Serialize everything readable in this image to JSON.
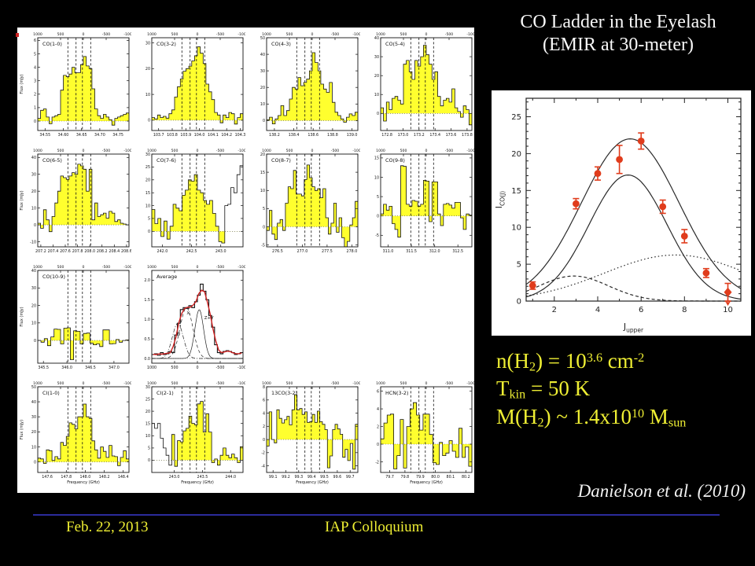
{
  "slide": {
    "title": {
      "line1": "CO Ladder in the Eyelash",
      "line2": "(EMIR at 30-meter)",
      "color": "#f8f8f8"
    },
    "credit": "Danielson et al. (2010)",
    "credit_color": "#f2f2f2",
    "footer": {
      "date": "Feb. 22, 2013",
      "venue": "IAP Colloquium",
      "divider_color": "#2b2b9b",
      "text_color": "#eeee33"
    },
    "artifact_color": "#cc2222"
  },
  "physics": {
    "color": "#eeee33",
    "lines": [
      [
        {
          "t": "n(H"
        },
        {
          "t": "2",
          "s": "sub"
        },
        {
          "t": ") = 10"
        },
        {
          "t": "3.6",
          "s": "sup"
        },
        {
          "t": " cm"
        },
        {
          "t": "-2",
          "s": "sup"
        }
      ],
      [
        {
          "t": "T"
        },
        {
          "t": "kin",
          "s": "sub"
        },
        {
          "t": " = 50 K"
        }
      ],
      [
        {
          "t": "M(H"
        },
        {
          "t": "2",
          "s": "sub"
        },
        {
          "t": ") ~ 1.4x10"
        },
        {
          "t": "10",
          "s": "sup"
        },
        {
          "t": " M"
        },
        {
          "t": "sun",
          "s": "sub"
        }
      ]
    ]
  },
  "chart_data": [
    {
      "id": "co-ladder",
      "type": "scatter",
      "xlabel": "J",
      "xlabel_sub": "upper",
      "ylabel": "I",
      "ylabel_sub": "CO(J)",
      "xlim": [
        0.7,
        10.6
      ],
      "ylim": [
        0,
        27.5
      ],
      "xticks": [
        2,
        4,
        6,
        8,
        10
      ],
      "yticks": [
        0,
        5,
        10,
        15,
        20,
        25
      ],
      "points": {
        "x": [
          1,
          3,
          4,
          5,
          6,
          7,
          8,
          9,
          10
        ],
        "y": [
          2.1,
          13.2,
          17.3,
          19.2,
          21.7,
          12.8,
          8.8,
          3.8,
          1.2
        ],
        "yerr": [
          0.5,
          0.7,
          0.9,
          1.9,
          1.1,
          0.9,
          0.9,
          0.6,
          1.2
        ],
        "color": "#e03c1c",
        "upper_limit_index": 8
      },
      "curves": [
        {
          "style": "solid",
          "amp": 22.0,
          "center": 5.5,
          "sigma": 2.25
        },
        {
          "style": "solid",
          "amp": 17.1,
          "center": 5.4,
          "sigma": 1.8
        },
        {
          "style": "dashed",
          "amp": 3.4,
          "center": 2.9,
          "sigma": 1.6
        },
        {
          "style": "dotted",
          "amp": 6.25,
          "center": 7.6,
          "sigma": 3.3
        }
      ]
    },
    {
      "id": "spectra-grid",
      "type": "bar-grid",
      "flux_label": "Flux (mJy)",
      "freq_label": "Frequency (GHz)",
      "velocity_ticks": [
        "1000",
        "500",
        "0",
        "-500",
        "-1000"
      ],
      "dashed_velocities": [
        340,
        160,
        20,
        -160
      ],
      "bar_color": "#ffff2e",
      "red_fit_color": "#cc2020",
      "panels": [
        {
          "label": "CO(1-0)",
          "row": 0,
          "col": 0,
          "ylabel": true,
          "xmin": 34.53,
          "xmax": 34.78,
          "xticks": [
            "34.55",
            "34.60",
            "34.65",
            "34.70",
            "34.75"
          ],
          "ymin": -0.7,
          "ymax": 6.2,
          "yticks": [
            "0",
            "1",
            "2",
            "3",
            "4",
            "5",
            "6"
          ],
          "bins": [
            0.2,
            0.8,
            0.9,
            0.3,
            -0.2,
            0.3,
            0.4,
            0.5,
            2.3,
            3.4,
            3.3,
            3.5,
            4.0,
            3.6,
            3.6,
            4.2,
            4.8,
            4.1,
            3.9,
            2.4,
            0.9,
            0.4,
            0.2,
            0.5,
            0.3,
            0.1,
            -0.3,
            0.2,
            0.3,
            0.4,
            0.5,
            0.6
          ]
        },
        {
          "label": "CO(3-2)",
          "row": 0,
          "col": 1,
          "xmin": 103.65,
          "xmax": 104.32,
          "xticks": [
            "103.7",
            "103.8",
            "103.9",
            "104.0",
            "104.1",
            "104.2",
            "104.3"
          ],
          "ymin": -4,
          "ymax": 32,
          "yticks": [
            "0",
            "10",
            "20",
            "30"
          ],
          "bins": [
            1.0,
            0.5,
            2.0,
            1.0,
            1.5,
            0.8,
            2.5,
            4.0,
            9.0,
            13.0,
            16.0,
            19.0,
            20.0,
            21.0,
            23.0,
            25.0,
            28.5,
            26.0,
            22.0,
            14.0,
            11.0,
            8.0,
            3.0,
            2.0,
            -1.0,
            2.0,
            1.0,
            3.0,
            2.5,
            -1.5,
            1.0,
            2.5
          ]
        },
        {
          "label": "CO(4-3)",
          "row": 0,
          "col": 2,
          "xmin": 138.12,
          "xmax": 139.06,
          "xticks": [
            "138.2",
            "138.4",
            "138.6",
            "138.8",
            "139.0"
          ],
          "ymin": -6,
          "ymax": 50,
          "yticks": [
            "0",
            "10",
            "20",
            "30",
            "40",
            "50"
          ],
          "bins": [
            0.5,
            2.0,
            -2.0,
            1.0,
            3.0,
            9.0,
            3.0,
            6.0,
            13.0,
            20.0,
            19.0,
            26.0,
            21.0,
            23.0,
            25.0,
            30.0,
            41.0,
            35.0,
            30.0,
            22.0,
            19.0,
            17.0,
            23.0,
            11.0,
            5.0,
            3.0,
            1.0,
            -1.0,
            2.0,
            4.0,
            3.0,
            5.0
          ]
        },
        {
          "label": "CO(5-4)",
          "row": 0,
          "col": 3,
          "xmin": 172.72,
          "xmax": 173.86,
          "xticks": [
            "172.8",
            "173.0",
            "173.2",
            "173.4",
            "173.6",
            "173.8"
          ],
          "ymin": -9,
          "ymax": 40,
          "yticks": [
            "0",
            "10",
            "20",
            "30",
            "40"
          ],
          "bins": [
            3.0,
            -4.0,
            6.0,
            2.0,
            8.0,
            9.0,
            7.0,
            5.0,
            26.0,
            28.0,
            22.0,
            18.0,
            28.0,
            25.0,
            30.0,
            36.0,
            31.0,
            26.0,
            18.0,
            22.0,
            9.0,
            4.0,
            7.0,
            8.0,
            6.0,
            13.0,
            3.0,
            1.0,
            -2.0,
            4.0,
            2.0,
            -6.0
          ]
        },
        {
          "label": "CO(6-5)",
          "row": 1,
          "col": 0,
          "ylabel": true,
          "xmin": 207.15,
          "xmax": 208.64,
          "xticks": [
            "207.2",
            "207.4",
            "207.6",
            "207.8",
            "208.0",
            "208.2",
            "208.4",
            "208.6"
          ],
          "ymin": -13,
          "ymax": 42,
          "yticks": [
            "-10",
            "0",
            "10",
            "20",
            "30",
            "40"
          ],
          "bins": [
            1.0,
            -2.0,
            9.0,
            3.0,
            -4.0,
            5.0,
            13.0,
            20.0,
            29.0,
            28.0,
            27.0,
            29.0,
            31.0,
            30.0,
            36.0,
            35.0,
            33.0,
            20.0,
            33.0,
            3.0,
            13.0,
            5.0,
            6.0,
            7.0,
            4.0,
            8.0,
            7.0,
            2.0,
            3.0,
            1.0,
            0.5,
            0.0
          ]
        },
        {
          "label": "CO(7-6)",
          "row": 1,
          "col": 1,
          "xmin": 241.82,
          "xmax": 243.38,
          "xticks": [
            "242.0",
            "242.5",
            "243.0"
          ],
          "ymin": -6,
          "ymax": 30,
          "yticks": [
            "0",
            "5",
            "10",
            "15",
            "20",
            "25",
            "30"
          ],
          "open": [
            24,
            30
          ],
          "bins": [
            8.5,
            3.0,
            5.0,
            -2.0,
            4.0,
            -3.0,
            2.0,
            10.5,
            9.0,
            8.0,
            14.0,
            16.0,
            20.0,
            19.5,
            22.0,
            16.0,
            15.0,
            12.0,
            10.5,
            12.0,
            7.0,
            2.0,
            -4.0,
            -4.5,
            10.0,
            10.5,
            17.0,
            15.0,
            22.0,
            25.5
          ]
        },
        {
          "label": "CO(8-7)",
          "row": 1,
          "col": 2,
          "xmin": 276.28,
          "xmax": 278.12,
          "xticks": [
            "276.5",
            "277.0",
            "277.5",
            "278.0"
          ],
          "ymin": -5.5,
          "ymax": 20,
          "yticks": [
            "-5",
            "0",
            "5",
            "10",
            "15",
            "20"
          ],
          "bins": [
            -1.0,
            4.5,
            -2.0,
            -3.5,
            1.0,
            2.0,
            -1.0,
            6.5,
            11.0,
            10.5,
            15.5,
            9.0,
            9.0,
            8.5,
            13.0,
            17.0,
            13.5,
            11.0,
            10.0,
            10.5,
            8.0,
            10.5,
            2.5,
            -2.0,
            1.0,
            6.5,
            -1.5,
            2.5,
            -3.0,
            -5.5,
            -4.0,
            0.5,
            2.5,
            7.0
          ]
        },
        {
          "label": "CO(9-8)",
          "row": 1,
          "col": 3,
          "xmin": 310.84,
          "xmax": 312.8,
          "xticks": [
            "311.0",
            "311.5",
            "312.0",
            "312.5"
          ],
          "ymin": -8,
          "ymax": 16,
          "yticks": [
            "-5",
            "0",
            "5",
            "10",
            "15"
          ],
          "bins": [
            0.5,
            3.0,
            1.5,
            2.5,
            -2.0,
            -3.5,
            -5.5,
            13.0,
            12.8,
            3.0,
            2.5,
            4.0,
            3.8,
            2.5,
            3.0,
            9.2,
            9.0,
            -1.5,
            8.8,
            8.8,
            0.5,
            -2.5,
            3.0,
            3.2,
            2.8,
            2.0,
            3.5,
            3.5,
            -0.5,
            -3.5,
            0.5,
            0.2
          ]
        },
        {
          "label": "CO(10-9)",
          "row": 2,
          "col": 0,
          "ylabel": true,
          "xmin": 345.38,
          "xmax": 347.32,
          "xticks": [
            "345.5",
            "346.0",
            "346.5",
            "347.0",
            "347.5"
          ],
          "ymin": -13,
          "ymax": 40,
          "yticks": [
            "0",
            "10",
            "20",
            "30",
            "40"
          ],
          "bins": [
            0.0,
            -1.0,
            1.0,
            -3.0,
            2.0,
            6.5,
            6.3,
            -2.0,
            7.0,
            7.2,
            -11.0,
            5.5,
            5.2,
            -2.0,
            4.0,
            4.2,
            -1.5,
            -2.5,
            -2.0,
            -3.5,
            6.0,
            6.0,
            -2.0,
            -1.8,
            0.5,
            -1.0,
            0.0,
            0.3
          ]
        },
        {
          "label": "Average",
          "row": 2,
          "col": 1,
          "kind": "average",
          "xmin": 1000,
          "xmax": -1000,
          "xticks": [
            "1000",
            "500",
            "0",
            "-500",
            "-1000"
          ],
          "ymin": -0.12,
          "ymax": 2.25,
          "yticks": [
            "0.0",
            "0.5",
            "1.0",
            "1.5",
            "2.0"
          ],
          "bins": [
            0.1,
            0.12,
            0.08,
            0.15,
            0.1,
            0.12,
            0.18,
            0.15,
            0.6,
            0.9,
            1.25,
            1.3,
            1.28,
            1.35,
            1.3,
            1.45,
            1.62,
            1.9,
            1.72,
            1.5,
            1.1,
            0.8,
            0.35,
            0.15,
            0.12,
            0.18,
            0.2,
            0.18,
            0.15,
            0.1,
            0.12,
            0.15
          ],
          "components": [
            {
              "label": "W",
              "style": "dashdot",
              "amp": 0.9,
              "center": 430,
              "sigma": 120,
              "lx": 470,
              "ly": 0.58
            },
            {
              "label": "X",
              "style": "dashed",
              "amp": 1.3,
              "center": 240,
              "sigma": 140,
              "lx": 235,
              "ly": 1.13
            },
            {
              "label": "Z+Y",
              "style": "solid",
              "amp": 1.25,
              "center": -40,
              "sigma": 95,
              "lx": -150,
              "ly": 1.0
            }
          ]
        },
        {
          "label": "CI(1-0)",
          "row": 3,
          "col": 0,
          "ylabel": true,
          "xlabel": true,
          "xmin": 147.5,
          "xmax": 148.46,
          "xticks": [
            "147.6",
            "147.8",
            "148.0",
            "148.2",
            "148.4"
          ],
          "ymin": -7,
          "ymax": 50,
          "yticks": [
            "0",
            "10",
            "20",
            "30",
            "40",
            "50"
          ],
          "bins": [
            2.5,
            2.0,
            -1.0,
            8.0,
            7.5,
            1.0,
            3.5,
            2.0,
            13.0,
            11.0,
            17.0,
            26.0,
            25.0,
            22.0,
            30.0,
            30.0,
            38.5,
            30.0,
            29.0,
            14.0,
            8.0,
            2.5,
            10.0,
            7.0,
            3.0,
            11.0,
            4.0,
            3.5,
            -2.5,
            3.0,
            7.5,
            2.0
          ]
        },
        {
          "label": "CI(2-1)",
          "row": 3,
          "col": 1,
          "xlabel": true,
          "xmin": 242.6,
          "xmax": 244.22,
          "xticks": [
            "243.0",
            "243.5",
            "244.0"
          ],
          "ymin": -5,
          "ymax": 30,
          "yticks": [
            "0",
            "5",
            "10",
            "15",
            "20",
            "25",
            "30"
          ],
          "open": [
            0,
            7
          ],
          "bins": [
            15.0,
            13.0,
            15.0,
            9.0,
            5.0,
            2.0,
            -2.0,
            10.5,
            -2.5,
            8.0,
            7.5,
            12.0,
            13.0,
            18.0,
            15.0,
            14.5,
            23.0,
            24.0,
            11.5,
            19.0,
            11.5,
            -1.0,
            0.5,
            -2.0,
            2.0,
            5.0,
            2.0,
            1.0,
            2.5,
            1.0,
            -1.0,
            5.5
          ]
        },
        {
          "label": "13CO(3-2)",
          "row": 3,
          "col": 2,
          "xlabel": true,
          "xmin": 99.05,
          "xmax": 99.76,
          "xticks": [
            "99.1",
            "99.2",
            "99.3",
            "99.4",
            "99.5",
            "99.6",
            "99.7"
          ],
          "ymin": -5,
          "ymax": 8,
          "yticks": [
            "-4",
            "-2",
            "0",
            "2",
            "4",
            "6",
            "8"
          ],
          "bins": [
            -1.0,
            4.2,
            0.0,
            -0.5,
            4.5,
            3.2,
            2.5,
            3.0,
            3.5,
            2.2,
            4.5,
            6.8,
            4.5,
            4.7,
            3.8,
            4.2,
            2.6,
            2.7,
            3.8,
            2.6,
            4.3,
            2.7,
            2.3,
            1.5,
            -4.3,
            -2.5,
            1.5,
            2.3,
            1.6,
            0.8,
            -2.7,
            -1.5,
            -3.2,
            -0.6,
            -4.5,
            2.3
          ]
        },
        {
          "label": "HCN(3-2)",
          "row": 3,
          "col": 3,
          "xlabel": true,
          "xmin": 79.64,
          "xmax": 80.24,
          "xticks": [
            "79.7",
            "79.8",
            "79.9",
            "80.0",
            "80.1",
            "80.2"
          ],
          "ymin": -3.2,
          "ymax": 6.5,
          "yticks": [
            "-2",
            "0",
            "2",
            "4",
            "6"
          ],
          "bins": [
            0.6,
            2.4,
            3.3,
            3.4,
            -2.8,
            -1.3,
            2.8,
            -2.7,
            2.0,
            4.0,
            4.7,
            3.3,
            1.6,
            3.4,
            3.4,
            1.1,
            -2.1,
            -2.3,
            0.2,
            -1.3,
            -1.0,
            0.4,
            -0.8,
            -1.5,
            1.8,
            -1.5,
            -0.3,
            -2.5
          ]
        }
      ]
    }
  ]
}
